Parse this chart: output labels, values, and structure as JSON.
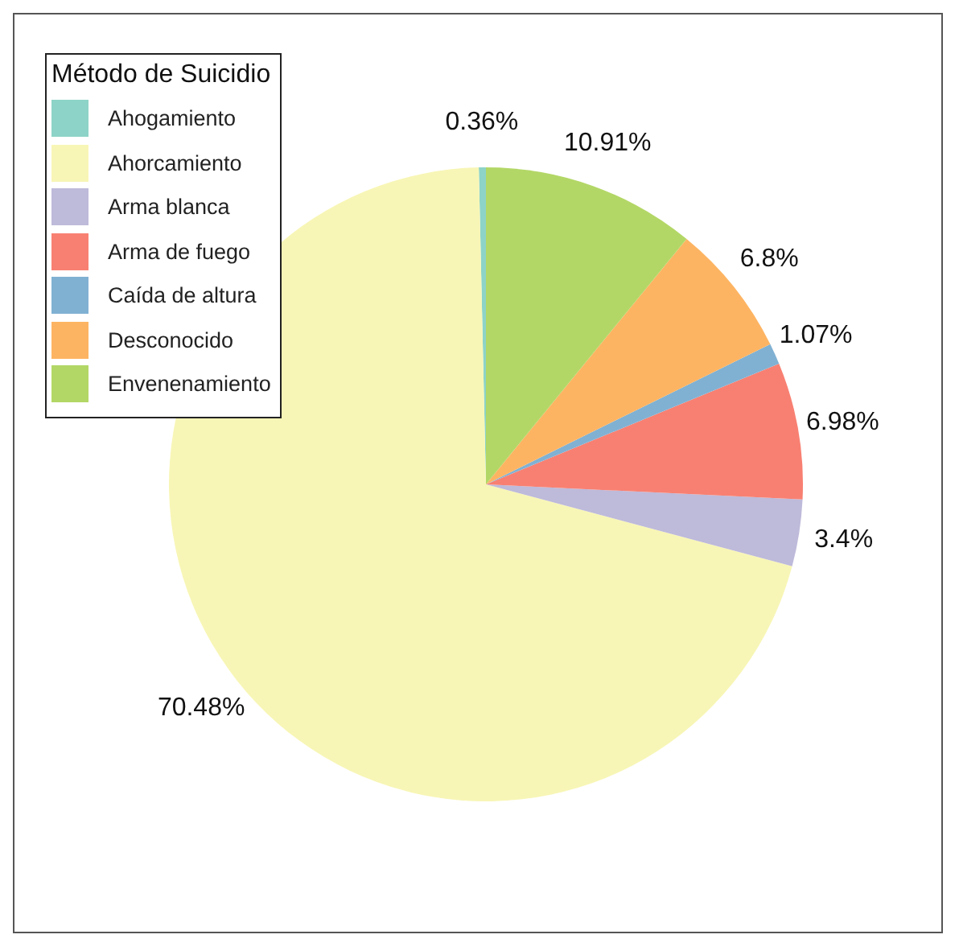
{
  "chart_data": {
    "type": "pie",
    "legend_title": "Método de Suicidio",
    "legend": "top left",
    "categories": [
      "Ahogamiento",
      "Ahorcamiento",
      "Arma blanca",
      "Arma de fuego",
      "Caída de altura",
      "Desconocido",
      "Envenenamiento"
    ],
    "values": [
      0.36,
      70.48,
      3.4,
      6.98,
      1.07,
      6.8,
      10.91
    ],
    "value_labels": [
      "0.36%",
      "70.48%",
      "3.4%",
      "6.98%",
      "1.07%",
      "6.8%",
      "10.91%"
    ],
    "colors": [
      "#8dd3c7",
      "#f8f6b6",
      "#bebada",
      "#f88072",
      "#80b1d3",
      "#fdb462",
      "#b3d766"
    ]
  }
}
